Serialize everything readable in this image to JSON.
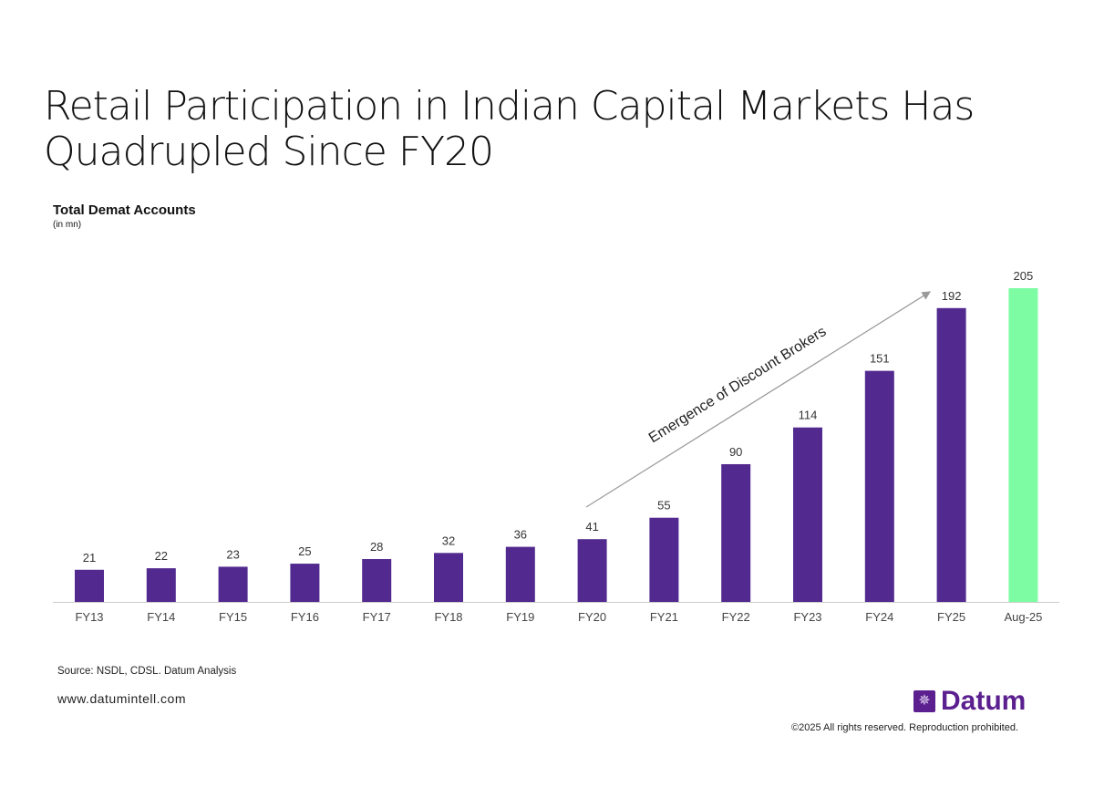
{
  "title": "Retail Participation in Indian Capital Markets Has Quadrupled Since FY20",
  "source": "Source: NSDL, CDSL. Datum Analysis",
  "website": "www.datumintell.com",
  "copyright": "©2025 All rights reserved. Reproduction prohibited.",
  "logo": {
    "text": "Datum",
    "icon": "datum-logo-icon"
  },
  "chart_data": {
    "type": "bar",
    "title": "Total Demat Accounts",
    "subtitle": "(in mn)",
    "categories": [
      "FY13",
      "FY14",
      "FY15",
      "FY16",
      "FY17",
      "FY18",
      "FY19",
      "FY20",
      "FY21",
      "FY22",
      "FY23",
      "FY24",
      "FY25",
      "Aug-25"
    ],
    "values": [
      21,
      22,
      23,
      25,
      28,
      32,
      36,
      41,
      55,
      90,
      114,
      151,
      192,
      205
    ],
    "ylim": [
      0,
      205
    ],
    "grid": false,
    "colors": {
      "bar": "#522a8f",
      "highlight": "#7dfca3",
      "highlight_category": "Aug-25"
    },
    "annotation": {
      "text": "Emergence of Discount Brokers",
      "from_category": "FY20",
      "to_category": "FY25"
    }
  }
}
